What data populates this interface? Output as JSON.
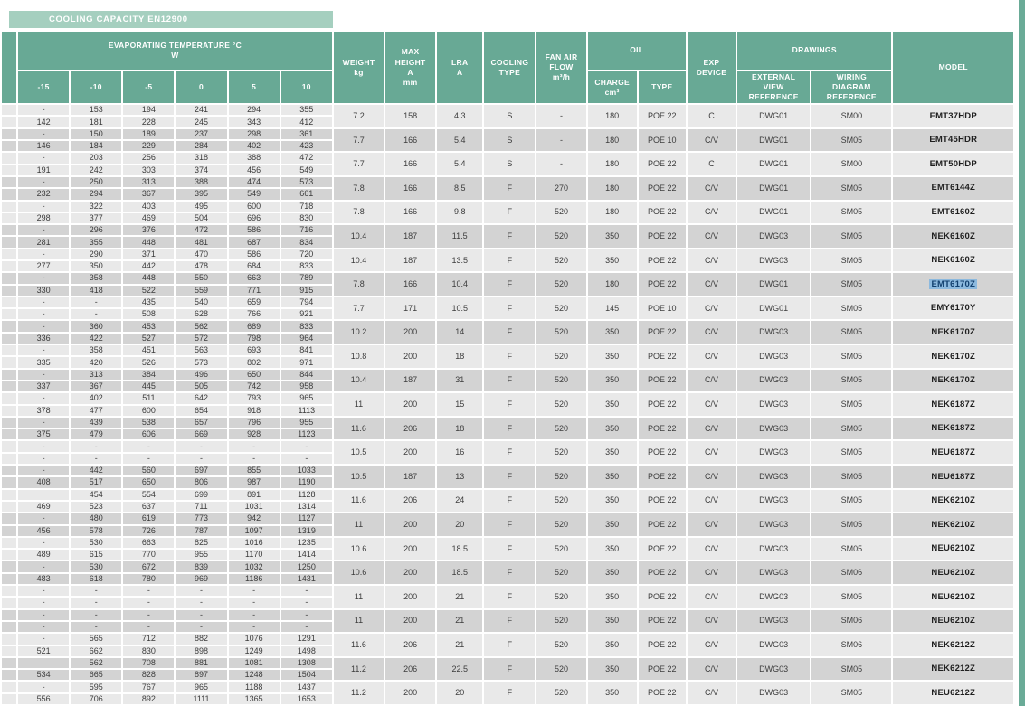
{
  "title_band": "COOLING CAPACITY EN12900",
  "colors": {
    "header_green": "#68a995",
    "band_green": "#a5cfbf",
    "row_light": "#e9e9e9",
    "row_dark": "#d3d3d3",
    "selection_bg": "#8cb9de",
    "selection_text": "#12406f"
  },
  "table": {
    "group_headers": {
      "evaporating": "EVAPORATING TEMPERATURE °C\nW",
      "oil": "OIL",
      "drawings": "DRAWINGS"
    },
    "columns": {
      "evap_temps": [
        "-15",
        "-10",
        "-5",
        "0",
        "5",
        "10"
      ],
      "weight": "WEIGHT\nkg",
      "max_height": "MAX\nHEIGHT\nA\nmm",
      "lra": "LRA\nA",
      "cooling_type": "COOLING\nTYPE",
      "fan_air_flow": "FAN AIR\nFLOW\nm³/h",
      "oil_charge": "CHARGE\ncm³",
      "oil_type": "TYPE",
      "exp_device": "EXP\nDEVICE",
      "external_view": "EXTERNAL\nVIEW\nREFERENCE",
      "wiring_diagram": "WIRING\nDIAGRAM\nREFERENCE",
      "model": "MODEL"
    },
    "rows": [
      {
        "cap_top": [
          "-",
          "153",
          "194",
          "241",
          "294",
          "355"
        ],
        "cap_bottom": [
          "142",
          "181",
          "228",
          "245",
          "343",
          "412"
        ],
        "weight": "7.2",
        "max_height": "158",
        "lra": "4.3",
        "cooling": "S",
        "fan": "-",
        "oil_charge": "180",
        "oil_type": "POE 22",
        "exp": "C",
        "dwg": "DWG01",
        "wiring": "SM00",
        "model": "EMT37HDP",
        "selected": false
      },
      {
        "cap_top": [
          "-",
          "150",
          "189",
          "237",
          "298",
          "361"
        ],
        "cap_bottom": [
          "146",
          "184",
          "229",
          "284",
          "402",
          "423"
        ],
        "weight": "7.7",
        "max_height": "166",
        "lra": "5.4",
        "cooling": "S",
        "fan": "-",
        "oil_charge": "180",
        "oil_type": "POE 10",
        "exp": "C/V",
        "dwg": "DWG01",
        "wiring": "SM05",
        "model": "EMT45HDR",
        "selected": false
      },
      {
        "cap_top": [
          "-",
          "203",
          "256",
          "318",
          "388",
          "472"
        ],
        "cap_bottom": [
          "191",
          "242",
          "303",
          "374",
          "456",
          "549"
        ],
        "weight": "7.7",
        "max_height": "166",
        "lra": "5.4",
        "cooling": "S",
        "fan": "-",
        "oil_charge": "180",
        "oil_type": "POE 22",
        "exp": "C",
        "dwg": "DWG01",
        "wiring": "SM00",
        "model": "EMT50HDP",
        "selected": false
      },
      {
        "cap_top": [
          "-",
          "250",
          "313",
          "388",
          "474",
          "573"
        ],
        "cap_bottom": [
          "232",
          "294",
          "367",
          "395",
          "549",
          "661"
        ],
        "weight": "7.8",
        "max_height": "166",
        "lra": "8.5",
        "cooling": "F",
        "fan": "270",
        "oil_charge": "180",
        "oil_type": "POE 22",
        "exp": "C/V",
        "dwg": "DWG01",
        "wiring": "SM05",
        "model": "EMT6144Z",
        "selected": false
      },
      {
        "cap_top": [
          "-",
          "322",
          "403",
          "495",
          "600",
          "718"
        ],
        "cap_bottom": [
          "298",
          "377",
          "469",
          "504",
          "696",
          "830"
        ],
        "weight": "7.8",
        "max_height": "166",
        "lra": "9.8",
        "cooling": "F",
        "fan": "520",
        "oil_charge": "180",
        "oil_type": "POE 22",
        "exp": "C/V",
        "dwg": "DWG01",
        "wiring": "SM05",
        "model": "EMT6160Z",
        "selected": false
      },
      {
        "cap_top": [
          "-",
          "296",
          "376",
          "472",
          "586",
          "716"
        ],
        "cap_bottom": [
          "281",
          "355",
          "448",
          "481",
          "687",
          "834"
        ],
        "weight": "10.4",
        "max_height": "187",
        "lra": "11.5",
        "cooling": "F",
        "fan": "520",
        "oil_charge": "350",
        "oil_type": "POE 22",
        "exp": "C/V",
        "dwg": "DWG03",
        "wiring": "SM05",
        "model": "NEK6160Z",
        "selected": false
      },
      {
        "cap_top": [
          "-",
          "290",
          "371",
          "470",
          "586",
          "720"
        ],
        "cap_bottom": [
          "277",
          "350",
          "442",
          "478",
          "684",
          "833"
        ],
        "weight": "10.4",
        "max_height": "187",
        "lra": "13.5",
        "cooling": "F",
        "fan": "520",
        "oil_charge": "350",
        "oil_type": "POE 22",
        "exp": "C/V",
        "dwg": "DWG03",
        "wiring": "SM05",
        "model": "NEK6160Z",
        "selected": false
      },
      {
        "cap_top": [
          "-",
          "358",
          "448",
          "550",
          "663",
          "789"
        ],
        "cap_bottom": [
          "330",
          "418",
          "522",
          "559",
          "771",
          "915"
        ],
        "weight": "7.8",
        "max_height": "166",
        "lra": "10.4",
        "cooling": "F",
        "fan": "520",
        "oil_charge": "180",
        "oil_type": "POE 22",
        "exp": "C/V",
        "dwg": "DWG01",
        "wiring": "SM05",
        "model": "EMT6170Z",
        "selected": true
      },
      {
        "cap_top": [
          "-",
          "-",
          "435",
          "540",
          "659",
          "794"
        ],
        "cap_bottom": [
          "-",
          "-",
          "508",
          "628",
          "766",
          "921"
        ],
        "weight": "7.7",
        "max_height": "171",
        "lra": "10.5",
        "cooling": "F",
        "fan": "520",
        "oil_charge": "145",
        "oil_type": "POE 10",
        "exp": "C/V",
        "dwg": "DWG01",
        "wiring": "SM05",
        "model": "EMY6170Y",
        "selected": false
      },
      {
        "cap_top": [
          "-",
          "360",
          "453",
          "562",
          "689",
          "833"
        ],
        "cap_bottom": [
          "336",
          "422",
          "527",
          "572",
          "798",
          "964"
        ],
        "weight": "10.2",
        "max_height": "200",
        "lra": "14",
        "cooling": "F",
        "fan": "520",
        "oil_charge": "350",
        "oil_type": "POE 22",
        "exp": "C/V",
        "dwg": "DWG03",
        "wiring": "SM05",
        "model": "NEK6170Z",
        "selected": false
      },
      {
        "cap_top": [
          "-",
          "358",
          "451",
          "563",
          "693",
          "841"
        ],
        "cap_bottom": [
          "335",
          "420",
          "526",
          "573",
          "802",
          "971"
        ],
        "weight": "10.8",
        "max_height": "200",
        "lra": "18",
        "cooling": "F",
        "fan": "520",
        "oil_charge": "350",
        "oil_type": "POE 22",
        "exp": "C/V",
        "dwg": "DWG03",
        "wiring": "SM05",
        "model": "NEK6170Z",
        "selected": false
      },
      {
        "cap_top": [
          "-",
          "313",
          "384",
          "496",
          "650",
          "844"
        ],
        "cap_bottom": [
          "337",
          "367",
          "445",
          "505",
          "742",
          "958"
        ],
        "weight": "10.4",
        "max_height": "187",
        "lra": "31",
        "cooling": "F",
        "fan": "520",
        "oil_charge": "350",
        "oil_type": "POE 22",
        "exp": "C/V",
        "dwg": "DWG03",
        "wiring": "SM05",
        "model": "NEK6170Z",
        "selected": false
      },
      {
        "cap_top": [
          "-",
          "402",
          "511",
          "642",
          "793",
          "965"
        ],
        "cap_bottom": [
          "378",
          "477",
          "600",
          "654",
          "918",
          "1113"
        ],
        "weight": "11",
        "max_height": "200",
        "lra": "15",
        "cooling": "F",
        "fan": "520",
        "oil_charge": "350",
        "oil_type": "POE 22",
        "exp": "C/V",
        "dwg": "DWG03",
        "wiring": "SM05",
        "model": "NEK6187Z",
        "selected": false
      },
      {
        "cap_top": [
          "-",
          "439",
          "538",
          "657",
          "796",
          "955"
        ],
        "cap_bottom": [
          "375",
          "479",
          "606",
          "669",
          "928",
          "1123"
        ],
        "weight": "11.6",
        "max_height": "206",
        "lra": "18",
        "cooling": "F",
        "fan": "520",
        "oil_charge": "350",
        "oil_type": "POE 22",
        "exp": "C/V",
        "dwg": "DWG03",
        "wiring": "SM05",
        "model": "NEK6187Z",
        "selected": false
      },
      {
        "cap_top": [
          "-",
          "-",
          "-",
          "-",
          "-",
          "-"
        ],
        "cap_bottom": [
          "-",
          "-",
          "-",
          "-",
          "-",
          "-"
        ],
        "weight": "10.5",
        "max_height": "200",
        "lra": "16",
        "cooling": "F",
        "fan": "520",
        "oil_charge": "350",
        "oil_type": "POE 22",
        "exp": "C/V",
        "dwg": "DWG03",
        "wiring": "SM05",
        "model": "NEU6187Z",
        "selected": false
      },
      {
        "cap_top": [
          "-",
          "442",
          "560",
          "697",
          "855",
          "1033"
        ],
        "cap_bottom": [
          "408",
          "517",
          "650",
          "806",
          "987",
          "1190"
        ],
        "weight": "10.5",
        "max_height": "187",
        "lra": "13",
        "cooling": "F",
        "fan": "520",
        "oil_charge": "350",
        "oil_type": "POE 22",
        "exp": "C/V",
        "dwg": "DWG03",
        "wiring": "SM05",
        "model": "NEU6187Z",
        "selected": false
      },
      {
        "cap_top": [
          "",
          "454",
          "554",
          "699",
          "891",
          "1128"
        ],
        "cap_bottom": [
          "469",
          "523",
          "637",
          "711",
          "1031",
          "1314"
        ],
        "weight": "11.6",
        "max_height": "206",
        "lra": "24",
        "cooling": "F",
        "fan": "520",
        "oil_charge": "350",
        "oil_type": "POE 22",
        "exp": "C/V",
        "dwg": "DWG03",
        "wiring": "SM05",
        "model": "NEK6210Z",
        "selected": false
      },
      {
        "cap_top": [
          "-",
          "480",
          "619",
          "773",
          "942",
          "1127"
        ],
        "cap_bottom": [
          "456",
          "578",
          "726",
          "787",
          "1097",
          "1319"
        ],
        "weight": "11",
        "max_height": "200",
        "lra": "20",
        "cooling": "F",
        "fan": "520",
        "oil_charge": "350",
        "oil_type": "POE 22",
        "exp": "C/V",
        "dwg": "DWG03",
        "wiring": "SM05",
        "model": "NEK6210Z",
        "selected": false
      },
      {
        "cap_top": [
          "-",
          "530",
          "663",
          "825",
          "1016",
          "1235"
        ],
        "cap_bottom": [
          "489",
          "615",
          "770",
          "955",
          "1170",
          "1414"
        ],
        "weight": "10.6",
        "max_height": "200",
        "lra": "18.5",
        "cooling": "F",
        "fan": "520",
        "oil_charge": "350",
        "oil_type": "POE 22",
        "exp": "C/V",
        "dwg": "DWG03",
        "wiring": "SM05",
        "model": "NEU6210Z",
        "selected": false
      },
      {
        "cap_top": [
          "-",
          "530",
          "672",
          "839",
          "1032",
          "1250"
        ],
        "cap_bottom": [
          "483",
          "618",
          "780",
          "969",
          "1186",
          "1431"
        ],
        "weight": "10.6",
        "max_height": "200",
        "lra": "18.5",
        "cooling": "F",
        "fan": "520",
        "oil_charge": "350",
        "oil_type": "POE 22",
        "exp": "C/V",
        "dwg": "DWG03",
        "wiring": "SM06",
        "model": "NEU6210Z",
        "selected": false
      },
      {
        "cap_top": [
          "-",
          "-",
          "-",
          "-",
          "-",
          "-"
        ],
        "cap_bottom": [
          "-",
          "-",
          "-",
          "-",
          "-",
          "-"
        ],
        "weight": "11",
        "max_height": "200",
        "lra": "21",
        "cooling": "F",
        "fan": "520",
        "oil_charge": "350",
        "oil_type": "POE 22",
        "exp": "C/V",
        "dwg": "DWG03",
        "wiring": "SM05",
        "model": "NEU6210Z",
        "selected": false
      },
      {
        "cap_top": [
          "-",
          "-",
          "-",
          "-",
          "-",
          "-"
        ],
        "cap_bottom": [
          "-",
          "-",
          "-",
          "-",
          "-",
          "-"
        ],
        "weight": "11",
        "max_height": "200",
        "lra": "21",
        "cooling": "F",
        "fan": "520",
        "oil_charge": "350",
        "oil_type": "POE 22",
        "exp": "C/V",
        "dwg": "DWG03",
        "wiring": "SM06",
        "model": "NEU6210Z",
        "selected": false
      },
      {
        "cap_top": [
          "-",
          "565",
          "712",
          "882",
          "1076",
          "1291"
        ],
        "cap_bottom": [
          "521",
          "662",
          "830",
          "898",
          "1249",
          "1498"
        ],
        "weight": "11.6",
        "max_height": "206",
        "lra": "21",
        "cooling": "F",
        "fan": "520",
        "oil_charge": "350",
        "oil_type": "POE 22",
        "exp": "C/V",
        "dwg": "DWG03",
        "wiring": "SM06",
        "model": "NEK6212Z",
        "selected": false
      },
      {
        "cap_top": [
          "",
          "562",
          "708",
          "881",
          "1081",
          "1308"
        ],
        "cap_bottom": [
          "534",
          "665",
          "828",
          "897",
          "1248",
          "1504"
        ],
        "weight": "11.2",
        "max_height": "206",
        "lra": "22.5",
        "cooling": "F",
        "fan": "520",
        "oil_charge": "350",
        "oil_type": "POE 22",
        "exp": "C/V",
        "dwg": "DWG03",
        "wiring": "SM05",
        "model": "NEK6212Z",
        "selected": false
      },
      {
        "cap_top": [
          "-",
          "595",
          "767",
          "965",
          "1188",
          "1437"
        ],
        "cap_bottom": [
          "556",
          "706",
          "892",
          "1111",
          "1365",
          "1653"
        ],
        "weight": "11.2",
        "max_height": "200",
        "lra": "20",
        "cooling": "F",
        "fan": "520",
        "oil_charge": "350",
        "oil_type": "POE 22",
        "exp": "C/V",
        "dwg": "DWG03",
        "wiring": "SM05",
        "model": "NEU6212Z",
        "selected": false
      }
    ]
  },
  "highlighted_model": "EMT6170Z"
}
